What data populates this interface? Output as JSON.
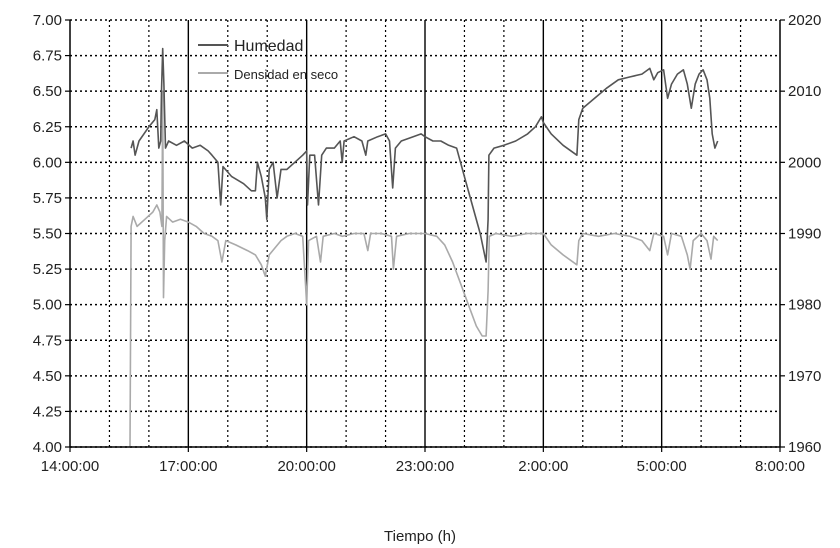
{
  "chart_data": {
    "type": "line",
    "title": "",
    "xlabel": "Tiempo (h)",
    "ylabel": "",
    "y2label": "",
    "x_ticks": [
      "14:00:00",
      "17:00:00",
      "20:00:00",
      "23:00:00",
      "2:00:00",
      "5:00:00",
      "8:00:00"
    ],
    "x_range_hours": [
      14,
      32
    ],
    "ylim": [
      4.0,
      7.0
    ],
    "y_ticks": [
      "4.00",
      "4.25",
      "4.50",
      "4.75",
      "5.00",
      "5.25",
      "5.50",
      "5.75",
      "6.00",
      "6.25",
      "6.50",
      "6.75",
      "7.00"
    ],
    "y2lim": [
      1960,
      2020
    ],
    "y2_ticks": [
      "1960",
      "1970",
      "1980",
      "1990",
      "2000",
      "2010",
      "2020"
    ],
    "grid": true,
    "legend_position": "top-left",
    "series": [
      {
        "name": "Humedad",
        "axis": "left",
        "color": "#555555",
        "points": [
          [
            15.55,
            6.1
          ],
          [
            15.6,
            6.15
          ],
          [
            15.65,
            6.05
          ],
          [
            15.75,
            6.15
          ],
          [
            16.0,
            6.25
          ],
          [
            16.15,
            6.3
          ],
          [
            16.2,
            6.37
          ],
          [
            16.25,
            6.1
          ],
          [
            16.3,
            6.15
          ],
          [
            16.32,
            6.5
          ],
          [
            16.35,
            6.8
          ],
          [
            16.38,
            6.55
          ],
          [
            16.42,
            6.1
          ],
          [
            16.5,
            6.15
          ],
          [
            16.7,
            6.12
          ],
          [
            16.9,
            6.15
          ],
          [
            17.1,
            6.1
          ],
          [
            17.3,
            6.12
          ],
          [
            17.5,
            6.08
          ],
          [
            17.6,
            6.05
          ],
          [
            17.75,
            6.0
          ],
          [
            17.82,
            5.7
          ],
          [
            17.88,
            5.97
          ],
          [
            18.1,
            5.9
          ],
          [
            18.4,
            5.85
          ],
          [
            18.6,
            5.8
          ],
          [
            18.7,
            5.8
          ],
          [
            18.75,
            6.0
          ],
          [
            18.85,
            5.9
          ],
          [
            18.95,
            5.75
          ],
          [
            18.99,
            5.6
          ],
          [
            19.05,
            5.95
          ],
          [
            19.15,
            6.0
          ],
          [
            19.25,
            5.75
          ],
          [
            19.35,
            5.95
          ],
          [
            19.5,
            5.95
          ],
          [
            19.7,
            6.0
          ],
          [
            19.9,
            6.05
          ],
          [
            20.0,
            6.08
          ],
          [
            20.02,
            5.7
          ],
          [
            20.08,
            6.05
          ],
          [
            20.2,
            6.05
          ],
          [
            20.3,
            5.7
          ],
          [
            20.38,
            6.05
          ],
          [
            20.5,
            6.1
          ],
          [
            20.7,
            6.1
          ],
          [
            20.85,
            6.15
          ],
          [
            20.9,
            6.0
          ],
          [
            20.95,
            6.15
          ],
          [
            21.2,
            6.18
          ],
          [
            21.4,
            6.15
          ],
          [
            21.5,
            6.05
          ],
          [
            21.55,
            6.15
          ],
          [
            21.8,
            6.18
          ],
          [
            22.0,
            6.2
          ],
          [
            22.1,
            6.15
          ],
          [
            22.18,
            5.82
          ],
          [
            22.25,
            6.1
          ],
          [
            22.4,
            6.15
          ],
          [
            22.7,
            6.18
          ],
          [
            22.9,
            6.2
          ],
          [
            23.0,
            6.18
          ],
          [
            23.2,
            6.15
          ],
          [
            23.4,
            6.15
          ],
          [
            23.6,
            6.12
          ],
          [
            23.8,
            6.1
          ],
          [
            24.0,
            5.9
          ],
          [
            24.2,
            5.7
          ],
          [
            24.4,
            5.5
          ],
          [
            24.55,
            5.3
          ],
          [
            24.6,
            5.6
          ],
          [
            24.62,
            6.05
          ],
          [
            24.75,
            6.1
          ],
          [
            25.0,
            6.12
          ],
          [
            25.3,
            6.15
          ],
          [
            25.6,
            6.2
          ],
          [
            25.8,
            6.25
          ],
          [
            25.95,
            6.32
          ],
          [
            26.0,
            6.28
          ],
          [
            26.2,
            6.2
          ],
          [
            26.5,
            6.12
          ],
          [
            26.85,
            6.05
          ],
          [
            26.9,
            6.3
          ],
          [
            27.0,
            6.38
          ],
          [
            27.3,
            6.45
          ],
          [
            27.6,
            6.52
          ],
          [
            27.9,
            6.58
          ],
          [
            28.2,
            6.6
          ],
          [
            28.5,
            6.62
          ],
          [
            28.7,
            6.66
          ],
          [
            28.8,
            6.58
          ],
          [
            28.9,
            6.63
          ],
          [
            29.05,
            6.65
          ],
          [
            29.15,
            6.45
          ],
          [
            29.25,
            6.55
          ],
          [
            29.4,
            6.62
          ],
          [
            29.55,
            6.65
          ],
          [
            29.65,
            6.55
          ],
          [
            29.75,
            6.38
          ],
          [
            29.85,
            6.55
          ],
          [
            29.95,
            6.62
          ],
          [
            30.05,
            6.65
          ],
          [
            30.15,
            6.58
          ],
          [
            30.22,
            6.45
          ],
          [
            30.28,
            6.2
          ],
          [
            30.35,
            6.1
          ],
          [
            30.42,
            6.15
          ]
        ]
      },
      {
        "name": "Densidad en seco",
        "axis": "left",
        "color": "#aaaaaa",
        "points": [
          [
            15.52,
            4.0
          ],
          [
            15.55,
            5.55
          ],
          [
            15.6,
            5.62
          ],
          [
            15.7,
            5.55
          ],
          [
            15.9,
            5.6
          ],
          [
            16.1,
            5.65
          ],
          [
            16.2,
            5.7
          ],
          [
            16.28,
            5.65
          ],
          [
            16.33,
            5.55
          ],
          [
            16.35,
            6.5
          ],
          [
            16.37,
            5.05
          ],
          [
            16.4,
            5.45
          ],
          [
            16.45,
            5.62
          ],
          [
            16.6,
            5.58
          ],
          [
            16.8,
            5.6
          ],
          [
            17.0,
            5.58
          ],
          [
            17.2,
            5.55
          ],
          [
            17.4,
            5.5
          ],
          [
            17.6,
            5.48
          ],
          [
            17.75,
            5.45
          ],
          [
            17.85,
            5.3
          ],
          [
            17.95,
            5.45
          ],
          [
            18.2,
            5.42
          ],
          [
            18.5,
            5.38
          ],
          [
            18.7,
            5.35
          ],
          [
            18.85,
            5.28
          ],
          [
            18.95,
            5.2
          ],
          [
            19.05,
            5.35
          ],
          [
            19.2,
            5.4
          ],
          [
            19.35,
            5.45
          ],
          [
            19.5,
            5.48
          ],
          [
            19.7,
            5.5
          ],
          [
            19.9,
            5.48
          ],
          [
            20.0,
            5.0
          ],
          [
            20.05,
            5.45
          ],
          [
            20.25,
            5.48
          ],
          [
            20.35,
            5.3
          ],
          [
            20.42,
            5.48
          ],
          [
            20.7,
            5.5
          ],
          [
            20.9,
            5.48
          ],
          [
            21.2,
            5.5
          ],
          [
            21.45,
            5.5
          ],
          [
            21.55,
            5.38
          ],
          [
            21.62,
            5.5
          ],
          [
            21.9,
            5.5
          ],
          [
            22.15,
            5.48
          ],
          [
            22.2,
            5.25
          ],
          [
            22.28,
            5.48
          ],
          [
            22.6,
            5.5
          ],
          [
            23.0,
            5.5
          ],
          [
            23.3,
            5.48
          ],
          [
            23.5,
            5.42
          ],
          [
            23.7,
            5.3
          ],
          [
            23.9,
            5.15
          ],
          [
            24.1,
            5.0
          ],
          [
            24.3,
            4.85
          ],
          [
            24.45,
            4.78
          ],
          [
            24.55,
            4.78
          ],
          [
            24.6,
            5.1
          ],
          [
            24.63,
            5.48
          ],
          [
            24.8,
            5.5
          ],
          [
            25.2,
            5.48
          ],
          [
            25.6,
            5.5
          ],
          [
            26.0,
            5.5
          ],
          [
            26.2,
            5.42
          ],
          [
            26.5,
            5.35
          ],
          [
            26.85,
            5.28
          ],
          [
            26.9,
            5.45
          ],
          [
            27.0,
            5.5
          ],
          [
            27.4,
            5.48
          ],
          [
            27.8,
            5.5
          ],
          [
            28.2,
            5.48
          ],
          [
            28.5,
            5.45
          ],
          [
            28.7,
            5.38
          ],
          [
            28.8,
            5.5
          ],
          [
            29.05,
            5.48
          ],
          [
            29.15,
            5.35
          ],
          [
            29.25,
            5.5
          ],
          [
            29.5,
            5.48
          ],
          [
            29.65,
            5.35
          ],
          [
            29.72,
            5.25
          ],
          [
            29.8,
            5.45
          ],
          [
            30.0,
            5.5
          ],
          [
            30.15,
            5.45
          ],
          [
            30.25,
            5.32
          ],
          [
            30.32,
            5.48
          ],
          [
            30.42,
            5.45
          ]
        ]
      }
    ]
  }
}
